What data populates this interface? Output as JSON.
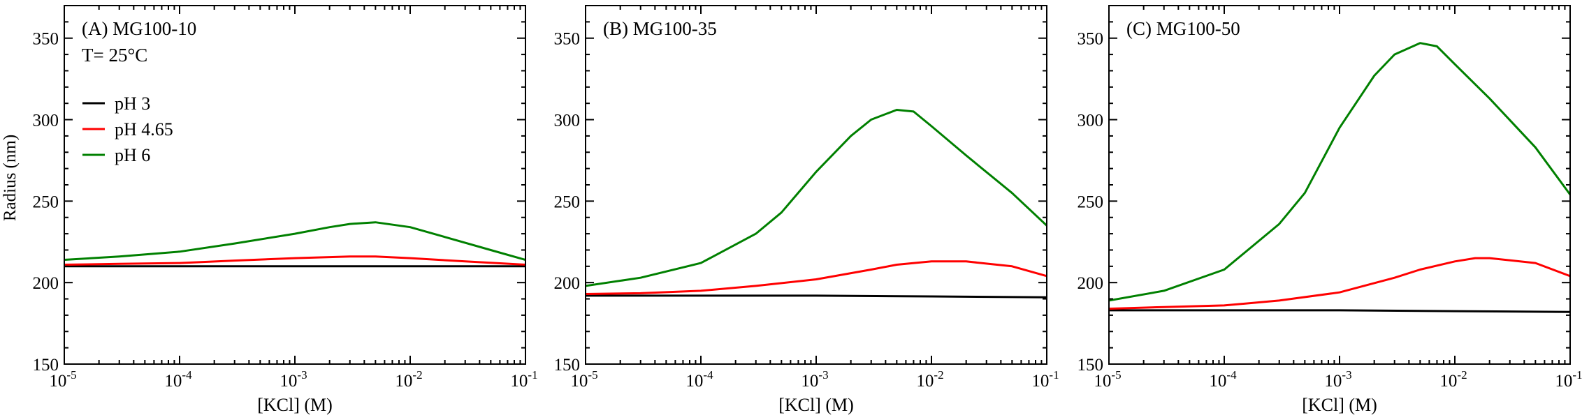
{
  "figure": {
    "xlabel": "[KCl] (M)",
    "ylabel": "Radius (nm)",
    "temperature_label": "T= 25°C"
  },
  "colors": {
    "pH 3": "#000000",
    "pH 4.65": "#ff0000",
    "pH 6": "#008000"
  },
  "chart_data": [
    {
      "type": "line",
      "panel_label": "(A) MG100-10",
      "annotation": "T= 25°C",
      "xlabel": "[KCl] (M)",
      "ylabel": "Radius (nm)",
      "xscale": "log",
      "xlim": [
        1e-05,
        0.1
      ],
      "ylim": [
        150,
        370
      ],
      "xticks": [
        1e-05,
        0.0001,
        0.001,
        0.01,
        0.1
      ],
      "xtick_labels": [
        [
          "10",
          "-5"
        ],
        [
          "10",
          "-4"
        ],
        [
          "10",
          "-3"
        ],
        [
          "10",
          "-2"
        ],
        [
          "10",
          "-1"
        ]
      ],
      "yticks": [
        150,
        200,
        250,
        300,
        350
      ],
      "legend": "top-left",
      "series": [
        {
          "name": "pH 3",
          "color": "#000000",
          "x": [
            1e-05,
            0.0001,
            0.001,
            0.01,
            0.1
          ],
          "y": [
            210,
            210,
            210,
            210,
            210
          ]
        },
        {
          "name": "pH 4.65",
          "color": "#ff0000",
          "x": [
            1e-05,
            3e-05,
            0.0001,
            0.0003,
            0.001,
            0.003,
            0.005,
            0.01,
            0.03,
            0.1
          ],
          "y": [
            211,
            211.5,
            212,
            213.5,
            215,
            216,
            216,
            215,
            213,
            211
          ]
        },
        {
          "name": "pH 6",
          "color": "#008000",
          "x": [
            1e-05,
            3e-05,
            0.0001,
            0.0003,
            0.001,
            0.002,
            0.003,
            0.005,
            0.01,
            0.02,
            0.05,
            0.1
          ],
          "y": [
            214,
            216,
            219,
            224,
            230,
            234,
            236,
            237,
            234,
            228,
            220,
            214
          ]
        }
      ]
    },
    {
      "type": "line",
      "panel_label": "(B) MG100-35",
      "xlabel": "[KCl] (M)",
      "xscale": "log",
      "xlim": [
        1e-05,
        0.1
      ],
      "ylim": [
        150,
        370
      ],
      "xticks": [
        1e-05,
        0.0001,
        0.001,
        0.01,
        0.1
      ],
      "xtick_labels": [
        [
          "10",
          "-5"
        ],
        [
          "10",
          "-4"
        ],
        [
          "10",
          "-3"
        ],
        [
          "10",
          "-2"
        ],
        [
          "10",
          "-1"
        ]
      ],
      "yticks": [
        150,
        200,
        250,
        300,
        350
      ],
      "series": [
        {
          "name": "pH 3",
          "color": "#000000",
          "x": [
            1e-05,
            0.0001,
            0.001,
            0.01,
            0.1
          ],
          "y": [
            192,
            192,
            192,
            191.5,
            191
          ]
        },
        {
          "name": "pH 4.65",
          "color": "#ff0000",
          "x": [
            1e-05,
            3e-05,
            0.0001,
            0.0003,
            0.001,
            0.003,
            0.005,
            0.01,
            0.02,
            0.05,
            0.1
          ],
          "y": [
            193,
            193.5,
            195,
            198,
            202,
            208,
            211,
            213,
            213,
            210,
            204
          ]
        },
        {
          "name": "pH 6",
          "color": "#008000",
          "x": [
            1e-05,
            3e-05,
            0.0001,
            0.0003,
            0.0005,
            0.001,
            0.002,
            0.003,
            0.005,
            0.007,
            0.01,
            0.02,
            0.05,
            0.1
          ],
          "y": [
            198,
            203,
            212,
            230,
            243,
            268,
            290,
            300,
            306,
            305,
            296,
            278,
            255,
            235
          ]
        }
      ]
    },
    {
      "type": "line",
      "panel_label": "(C) MG100-50",
      "xlabel": "[KCl] (M)",
      "xscale": "log",
      "xlim": [
        1e-05,
        0.1
      ],
      "ylim": [
        150,
        370
      ],
      "xticks": [
        1e-05,
        0.0001,
        0.001,
        0.01,
        0.1
      ],
      "xtick_labels": [
        [
          "10",
          "-5"
        ],
        [
          "10",
          "-4"
        ],
        [
          "10",
          "-3"
        ],
        [
          "10",
          "-2"
        ],
        [
          "10",
          "-1"
        ]
      ],
      "yticks": [
        150,
        200,
        250,
        300,
        350
      ],
      "series": [
        {
          "name": "pH 3",
          "color": "#000000",
          "x": [
            1e-05,
            0.0001,
            0.001,
            0.01,
            0.1
          ],
          "y": [
            183,
            183,
            183,
            182.5,
            182
          ]
        },
        {
          "name": "pH 4.65",
          "color": "#ff0000",
          "x": [
            1e-05,
            3e-05,
            0.0001,
            0.0003,
            0.001,
            0.003,
            0.005,
            0.01,
            0.015,
            0.02,
            0.05,
            0.1
          ],
          "y": [
            184,
            185,
            186,
            189,
            194,
            203,
            208,
            213,
            215,
            215,
            212,
            204
          ]
        },
        {
          "name": "pH 6",
          "color": "#008000",
          "x": [
            1e-05,
            3e-05,
            0.0001,
            0.0003,
            0.0005,
            0.001,
            0.002,
            0.003,
            0.005,
            0.007,
            0.01,
            0.02,
            0.05,
            0.1
          ],
          "y": [
            189,
            195,
            208,
            236,
            255,
            295,
            327,
            340,
            347,
            345,
            334,
            313,
            283,
            254
          ]
        }
      ]
    }
  ]
}
